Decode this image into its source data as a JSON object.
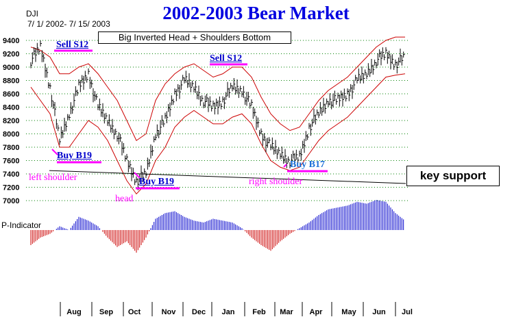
{
  "header": {
    "title": "2002-2003 Bear Market",
    "ticker": "DJI",
    "date_range": "7/ 1/ 2002- 7/ 15/ 2003"
  },
  "annotations": {
    "pattern": "Big Inverted Head + Shoulders Bottom",
    "key_support": "key support",
    "sell1": "Sell S12",
    "sell2": "Sell S12",
    "buy1": "Buy B19",
    "buy2": "Buy B19",
    "buy3": "Buy B17",
    "left_shoulder": "left shoulder",
    "head": "head",
    "right_shoulder": "right shoulder",
    "indicator_label": "P-Indicator"
  },
  "colors": {
    "title": "#0000e0",
    "price_bars": "#000000",
    "bands": "#cc0000",
    "indicator_positive": "#0000cc",
    "indicator_negative": "#cc0000",
    "highlight": "#ff00ff",
    "grid": "#008000"
  },
  "chart_data": {
    "type": "line",
    "title": "2002-2003 Bear Market",
    "yticks": [
      9400,
      9200,
      9000,
      8800,
      8600,
      8400,
      8200,
      8000,
      7800,
      7600,
      7400,
      7200,
      7000
    ],
    "ylim": [
      7000,
      9400
    ],
    "xticks": [
      "Aug",
      "Sep",
      "Oct",
      "Nov",
      "Dec",
      "Jan",
      "Feb",
      "Mar",
      "Apr",
      "May",
      "Jun",
      "Jul"
    ],
    "grid": true,
    "series": [
      {
        "values": [
          9100,
          9300,
          8700,
          7900,
          8300,
          8700,
          8900,
          8400,
          8200,
          8000,
          7600,
          7300,
          7400,
          8000,
          8200,
          8600,
          8800,
          8700,
          8500,
          8400,
          8500,
          8700,
          8650,
          8400,
          8000,
          7800,
          7700,
          7600,
          7650,
          8100,
          8300,
          8500,
          8500,
          8600,
          8800,
          8900,
          9100,
          9200,
          9050,
          9150
        ]
      }
    ],
    "upper_band": [
      9300,
      9250,
      9150,
      8900,
      8900,
      9000,
      9050,
      8900,
      8700,
      8500,
      8200,
      7900,
      8000,
      8500,
      8750,
      8900,
      9000,
      9050,
      8950,
      8850,
      8900,
      9000,
      9000,
      8850,
      8550,
      8300,
      8150,
      8050,
      8100,
      8300,
      8500,
      8650,
      8750,
      8850,
      9000,
      9150,
      9300,
      9400,
      9450,
      9450
    ],
    "lower_band": [
      8700,
      8500,
      8300,
      7800,
      7800,
      8000,
      8200,
      8100,
      7900,
      7600,
      7300,
      7100,
      7250,
      7600,
      7800,
      8100,
      8250,
      8350,
      8250,
      8150,
      8150,
      8250,
      8300,
      8150,
      7850,
      7600,
      7500,
      7450,
      7500,
      7700,
      7900,
      8050,
      8150,
      8250,
      8400,
      8550,
      8700,
      8850,
      8880,
      8900
    ],
    "indicator": [
      -40,
      -20,
      -10,
      10,
      0,
      35,
      25,
      10,
      -20,
      -45,
      -30,
      -60,
      -20,
      30,
      45,
      50,
      35,
      25,
      20,
      30,
      25,
      20,
      5,
      -20,
      -40,
      -55,
      -30,
      -10,
      5,
      20,
      40,
      55,
      60,
      65,
      75,
      70,
      80,
      75,
      45,
      25
    ],
    "support_line": [
      [
        7450,
        7380
      ]
    ]
  }
}
